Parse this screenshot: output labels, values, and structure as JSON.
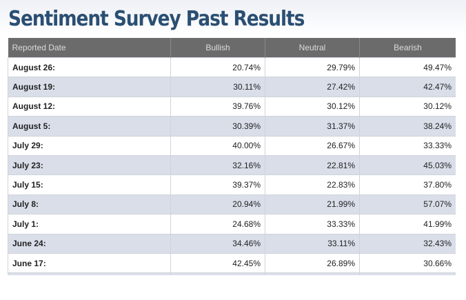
{
  "header": {
    "title": "Sentiment Survey Past Results"
  },
  "table": {
    "columns": [
      "Reported Date",
      "Bullish",
      "Neutral",
      "Bearish"
    ],
    "rows": [
      [
        "August 26:",
        "20.74%",
        "29.79%",
        "49.47%"
      ],
      [
        "August 19:",
        "30.11%",
        "27.42%",
        "42.47%"
      ],
      [
        "August 12:",
        "39.76%",
        "30.12%",
        "30.12%"
      ],
      [
        "August 5:",
        "30.39%",
        "31.37%",
        "38.24%"
      ],
      [
        "July 29:",
        "40.00%",
        "26.67%",
        "33.33%"
      ],
      [
        "July 23:",
        "32.16%",
        "22.81%",
        "45.03%"
      ],
      [
        "July 15:",
        "39.37%",
        "22.83%",
        "37.80%"
      ],
      [
        "July 8:",
        "20.94%",
        "21.99%",
        "57.07%"
      ],
      [
        "July 1:",
        "24.68%",
        "33.33%",
        "41.99%"
      ],
      [
        "June 24:",
        "34.46%",
        "33.11%",
        "32.43%"
      ],
      [
        "June 17:",
        "42.45%",
        "26.89%",
        "30.66%"
      ]
    ]
  }
}
